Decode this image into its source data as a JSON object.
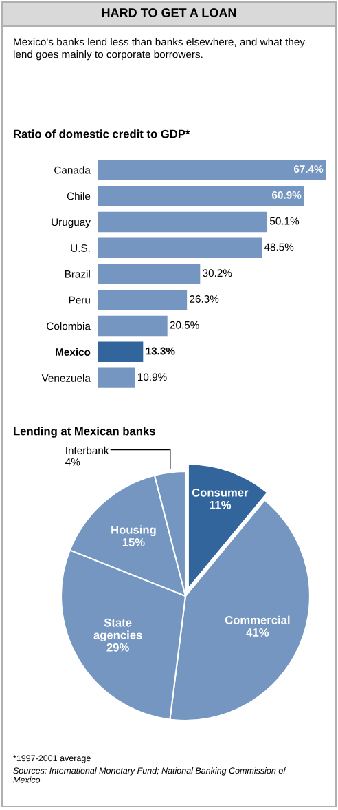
{
  "chart_data": [
    {
      "type": "other",
      "title": "HARD TO GET A LOAN",
      "subtitle": "Mexico's banks lend less than banks elsewhere, and what they lend goes mainly to corporate borrowers."
    },
    {
      "type": "bar",
      "orientation": "horizontal",
      "title": "Ratio of domestic credit to GDP*",
      "tick_labels": "y",
      "categories": [
        "Canada",
        "Chile",
        "Uruguay",
        "U.S.",
        "Brazil",
        "Peru",
        "Colombia",
        "Mexico",
        "Venezuela"
      ],
      "values": [
        67.4,
        60.9,
        50.1,
        48.5,
        30.2,
        26.3,
        20.5,
        13.3,
        10.9
      ],
      "value_labels": [
        "67.4%",
        "60.9%",
        "50.1%",
        "48.5%",
        "30.2%",
        "26.3%",
        "20.5%",
        "13.3%",
        "10.9%"
      ],
      "colors": [
        "#7496c0",
        "#7496c0",
        "#7496c0",
        "#7496c0",
        "#7496c0",
        "#7496c0",
        "#7496c0",
        "#31659c",
        "#7496c0"
      ]
    },
    {
      "type": "pie",
      "title": "Lending at Mexican banks",
      "categories": [
        "Consumer",
        "Commercial",
        "State agencies",
        "Housing",
        "Interbank"
      ],
      "values": [
        11,
        41,
        29,
        15,
        4
      ],
      "value_labels": [
        "11%",
        "41%",
        "29%",
        "15%",
        "4%"
      ],
      "colors": [
        "#31659c",
        "#7496c0",
        "#7496c0",
        "#7496c0",
        "#7496c0"
      ],
      "annotations": [
        "*1997-2001 average",
        "Sources: International Monetary Fund; National Banking Commission of Mexico"
      ]
    }
  ]
}
